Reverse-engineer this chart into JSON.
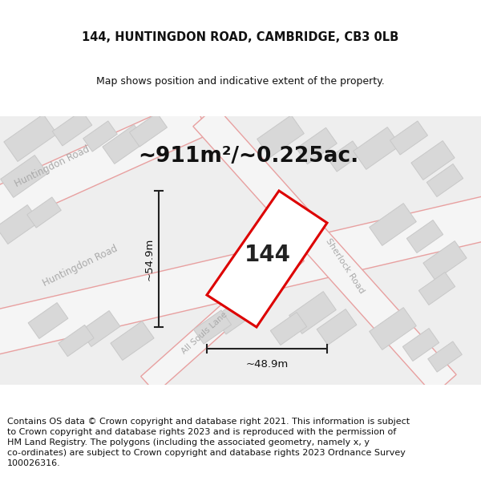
{
  "title_line1": "144, HUNTINGDON ROAD, CAMBRIDGE, CB3 0LB",
  "title_line2": "Map shows position and indicative extent of the property.",
  "area_label": "~911m²/~0.225ac.",
  "property_number": "144",
  "width_label": "~48.9m",
  "height_label": "~54.9m",
  "footer_text": "Contains OS data © Crown copyright and database right 2021. This information is subject to Crown copyright and database rights 2023 and is reproduced with the permission of HM Land Registry. The polygons (including the associated geometry, namely x, y co-ordinates) are subject to Crown copyright and database rights 2023 Ordnance Survey 100026316.",
  "bg_color": "#eeeeee",
  "property_outline_color": "#dd0000",
  "road_edge_color": "#e8a0a0",
  "building_fill": "#d8d8d8",
  "building_outline": "#c8c8c8",
  "road_fill": "#f8f8f8",
  "dimension_color": "#222222",
  "title_fontsize": 10.5,
  "subtitle_fontsize": 9,
  "area_fontsize": 19,
  "dim_fontsize": 9.5,
  "footer_fontsize": 8.0,
  "road_label_color": "#aaaaaa",
  "road_label_fontsize": 8.5
}
